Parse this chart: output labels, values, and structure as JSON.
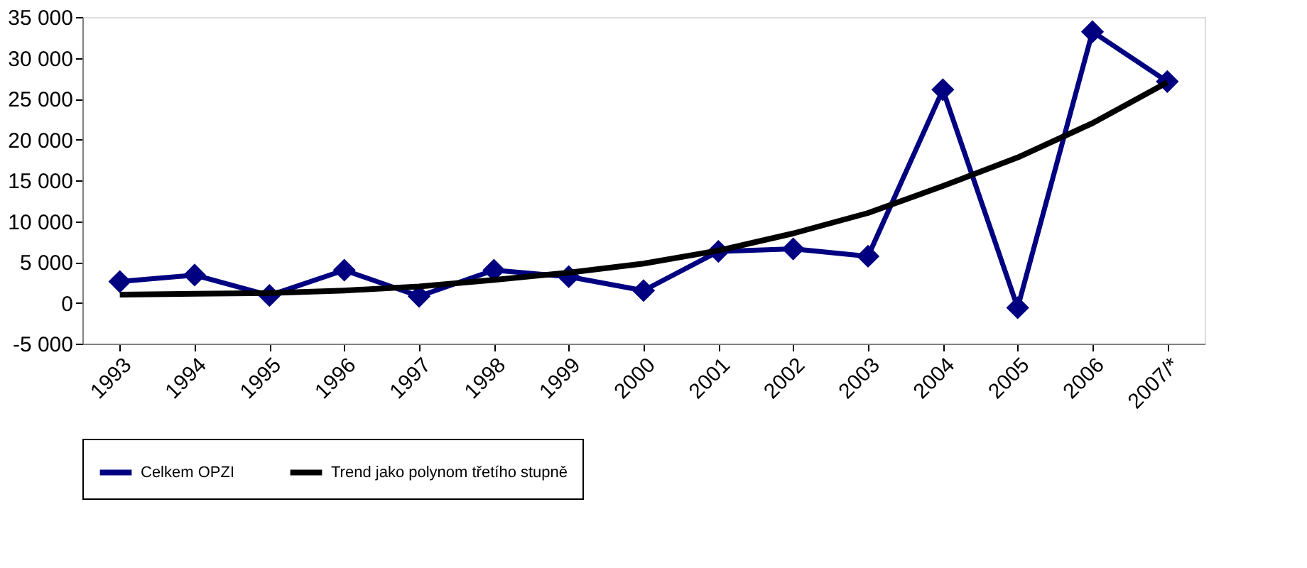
{
  "chart_data": {
    "type": "line",
    "categories": [
      "1993",
      "1994",
      "1995",
      "1996",
      "1997",
      "1998",
      "1999",
      "2000",
      "2001",
      "2002",
      "2003",
      "2004",
      "2005",
      "2006",
      "2007/*"
    ],
    "series": [
      {
        "name": "Celkem OPZI",
        "color": "#000080",
        "marker": "diamond",
        "values": [
          2600,
          3400,
          900,
          4000,
          800,
          4000,
          3200,
          1500,
          6300,
          6600,
          5700,
          26100,
          -600,
          33200,
          27100
        ]
      },
      {
        "name": "Trend jako polynom třetího stupně",
        "color": "#000000",
        "marker": "none",
        "values": [
          1000,
          1100,
          1200,
          1500,
          2000,
          2800,
          3700,
          4800,
          6400,
          8500,
          11000,
          14300,
          17800,
          22000,
          27000
        ]
      }
    ],
    "ylim": [
      -5000,
      35000
    ],
    "yticks": [
      {
        "value": -5000,
        "label": "-5 000"
      },
      {
        "value": 0,
        "label": "0"
      },
      {
        "value": 5000,
        "label": "5 000"
      },
      {
        "value": 10000,
        "label": "10 000"
      },
      {
        "value": 15000,
        "label": "15 000"
      },
      {
        "value": 20000,
        "label": "20 000"
      },
      {
        "value": 25000,
        "label": "25 000"
      },
      {
        "value": 30000,
        "label": "30 000"
      },
      {
        "value": 35000,
        "label": "35 000"
      }
    ],
    "grid": false,
    "legend": "bottom",
    "line_style": "solid"
  }
}
